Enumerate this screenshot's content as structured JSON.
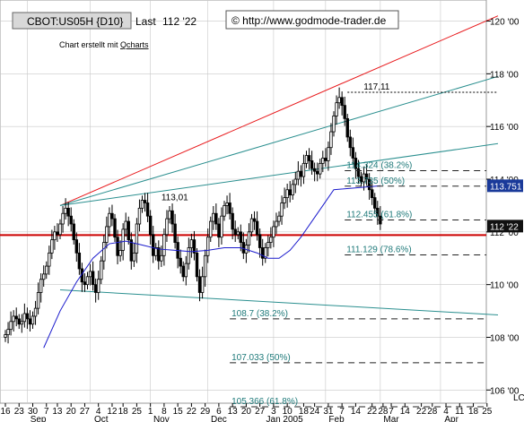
{
  "header": {
    "symbol": "CBOT:US05H {D10}",
    "last_label": "Last",
    "last_value": "112 '22",
    "copyright": "© http://www.godmode-trader.de",
    "credit_prefix": "Chart erstellt mit ",
    "credit_link": "Qcharts"
  },
  "colors": {
    "price": "#000000",
    "ma": "#1a1acc",
    "upper_trend": "#e8181b",
    "fan": "#2a8f8f",
    "support": "#cc0000",
    "fib_text": "#1f7a7a",
    "badge_ma_bg": "#1a3a9a",
    "badge_price_bg": "#111111",
    "grid": "#c8c8c8"
  },
  "chart_data": {
    "type": "candlestick",
    "y_axis": {
      "min": 105.5,
      "max": 120.8,
      "tick_labels": [
        "106 '00",
        "108 '00",
        "110 '00",
        "112 '00",
        "114 '00",
        "116 '00",
        "118 '00",
        "120 '00"
      ],
      "tick_values": [
        106,
        108,
        110,
        112,
        114,
        116,
        118,
        120
      ]
    },
    "x_day_labels": [
      "16",
      "23",
      "30",
      "7",
      "13",
      "20",
      "27",
      "4",
      "12",
      "18",
      "25",
      "1",
      "8",
      "15",
      "22",
      "29",
      "6",
      "13",
      "20",
      "27",
      "3",
      "10",
      "18",
      "24",
      "31",
      "7",
      "14",
      "22",
      "28",
      "7",
      "14",
      "22",
      "28",
      "4",
      "11",
      "18",
      "25"
    ],
    "x_day_slots": [
      0,
      5,
      10,
      15,
      19,
      24,
      29,
      34,
      39,
      43,
      48,
      53,
      58,
      63,
      68,
      73,
      78,
      83,
      88,
      93,
      98,
      103,
      109,
      113,
      118,
      123,
      128,
      134,
      138,
      141,
      146,
      152,
      156,
      161,
      166,
      171,
      176
    ],
    "x_month_labels": [
      {
        "label": "Sep",
        "slot": 12
      },
      {
        "label": "Oct",
        "slot": 35
      },
      {
        "label": "Nov",
        "slot": 57
      },
      {
        "label": "Dec",
        "slot": 78
      },
      {
        "label": "Jan 2005",
        "slot": 102
      },
      {
        "label": "Feb",
        "slot": 121
      },
      {
        "label": "Mar",
        "slot": 141
      },
      {
        "label": "Apr",
        "slot": 163
      }
    ],
    "corner_label": "LC",
    "price_badges": [
      {
        "label": "113.751",
        "value": 113.751,
        "style": "ma"
      },
      {
        "label": "112 '22",
        "value": 112.22,
        "style": "price"
      }
    ],
    "closes": [
      108.1,
      108.3,
      108.6,
      108.8,
      108.7,
      108.5,
      108.6,
      108.9,
      108.7,
      108.5,
      108.8,
      109.1,
      109.7,
      110.2,
      110.4,
      110.7,
      111.2,
      111.7,
      112.0,
      111.9,
      112.3,
      112.7,
      112.9,
      112.6,
      112.3,
      111.7,
      111.2,
      110.6,
      110.1,
      110.0,
      110.3,
      110.5,
      110.0,
      109.7,
      110.2,
      110.9,
      111.6,
      112.2,
      112.7,
      112.5,
      111.8,
      111.1,
      111.3,
      112.1,
      112.4,
      111.7,
      110.9,
      111.2,
      112.3,
      112.9,
      113.2,
      113.1,
      112.6,
      111.9,
      111.1,
      111.4,
      110.9,
      111.1,
      111.9,
      112.5,
      112.8,
      112.3,
      111.6,
      111.0,
      110.7,
      110.3,
      110.8,
      111.4,
      111.7,
      111.2,
      110.3,
      109.7,
      110.3,
      111.1,
      111.8,
      112.4,
      112.7,
      112.3,
      111.8,
      112.6,
      113.0,
      113.1,
      112.7,
      112.1,
      111.9,
      112.0,
      111.6,
      111.2,
      111.5,
      112.0,
      112.5,
      112.4,
      111.9,
      111.4,
      111.0,
      111.4,
      111.6,
      111.8,
      112.2,
      112.4,
      112.6,
      113.1,
      113.3,
      113.6,
      113.4,
      113.8,
      114.0,
      114.3,
      114.1,
      114.6,
      114.9,
      114.7,
      114.4,
      114.3,
      114.2,
      114.6,
      114.8,
      114.7,
      115.2,
      115.8,
      116.4,
      116.9,
      117.1,
      116.8,
      116.3,
      115.6,
      115.2,
      114.8,
      114.4,
      114.1,
      113.9,
      114.2,
      114.0,
      113.6,
      113.3,
      112.9,
      112.6,
      112.3
    ],
    "moving_average": [
      107.6,
      109.0,
      110.1,
      111.0,
      111.55,
      111.65,
      111.5,
      111.35,
      111.3,
      111.25,
      111.3,
      111.4,
      111.4,
      111.2,
      111.0,
      111.0,
      111.3,
      111.8,
      112.4,
      113.0,
      113.6,
      113.751
    ],
    "moving_average_slots": [
      14,
      20,
      26,
      32,
      38,
      44,
      50,
      56,
      62,
      68,
      74,
      80,
      86,
      92,
      96,
      100,
      104,
      108,
      112,
      116,
      120,
      137
    ],
    "support_line": 111.88,
    "upper_trendline": {
      "from": [
        20,
        113.0
      ],
      "to": [
        180,
        120.2
      ]
    },
    "fan_lines": [
      {
        "from": [
          20,
          113.0
        ],
        "to": [
          180,
          117.9
        ]
      },
      {
        "from": [
          20,
          113.0
        ],
        "to": [
          180,
          115.35
        ]
      },
      {
        "from": [
          20,
          109.8
        ],
        "to": [
          180,
          108.85
        ]
      }
    ],
    "annotations": [
      {
        "label": "117,11",
        "slot": 125,
        "value": 117.3,
        "line_to": 180
      },
      {
        "label": "113,01",
        "slot": 57,
        "value": 113.1
      }
    ],
    "fib_levels": [
      {
        "label": "114.324 (38.2%)",
        "value": 114.324,
        "slot": 124
      },
      {
        "label": "113.735 (50%)",
        "value": 113.735,
        "slot": 124
      },
      {
        "label": "112.455 (61.8%)",
        "value": 112.455,
        "slot": 124
      },
      {
        "label": "111.129 (78.6%)",
        "value": 111.129,
        "slot": 124
      },
      {
        "label": "108.7 (38.2%)",
        "value": 108.7,
        "slot": 82
      },
      {
        "label": "107.033 (50%)",
        "value": 107.033,
        "slot": 82
      },
      {
        "label": "105.366 (61.8%)",
        "value": 105.366,
        "slot": 82
      }
    ]
  }
}
